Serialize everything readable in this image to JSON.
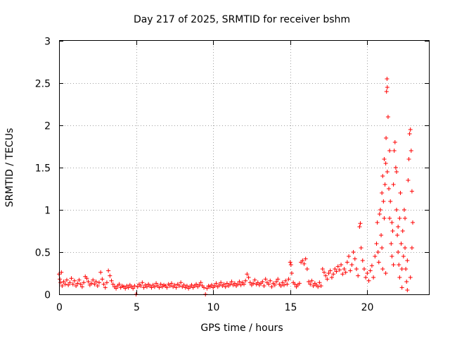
{
  "chart_data": {
    "type": "scatter",
    "title": "Day 217 of 2025, SRMTID for receiver bshm",
    "xlabel": "GPS time / hours",
    "ylabel": "SRMTID / TECUs",
    "xlim": [
      0,
      24
    ],
    "ylim": [
      0,
      3
    ],
    "xticks": [
      0,
      5,
      10,
      15,
      20
    ],
    "xtick_labels": [
      "0",
      "5",
      "10",
      "15",
      "20"
    ],
    "yticks": [
      0,
      0.5,
      1,
      1.5,
      2,
      2.5,
      3
    ],
    "ytick_labels": [
      "0",
      "0.5",
      "1",
      "1.5",
      "2",
      "2.5",
      "3"
    ],
    "grid": true,
    "marker": "+",
    "series": [
      {
        "name": "SRMTID",
        "color": "#ff0000",
        "points": [
          [
            0.0,
            0.24
          ],
          [
            0.05,
            0.18
          ],
          [
            0.1,
            0.14
          ],
          [
            0.15,
            0.26
          ],
          [
            0.2,
            0.1
          ],
          [
            0.3,
            0.15
          ],
          [
            0.4,
            0.12
          ],
          [
            0.5,
            0.17
          ],
          [
            0.6,
            0.11
          ],
          [
            0.7,
            0.14
          ],
          [
            0.8,
            0.19
          ],
          [
            0.9,
            0.12
          ],
          [
            1.0,
            0.16
          ],
          [
            1.1,
            0.1
          ],
          [
            1.2,
            0.13
          ],
          [
            1.3,
            0.17
          ],
          [
            1.4,
            0.12
          ],
          [
            1.5,
            0.09
          ],
          [
            1.6,
            0.14
          ],
          [
            1.7,
            0.21
          ],
          [
            1.8,
            0.19
          ],
          [
            1.9,
            0.15
          ],
          [
            2.0,
            0.11
          ],
          [
            2.1,
            0.13
          ],
          [
            2.2,
            0.17
          ],
          [
            2.3,
            0.12
          ],
          [
            2.4,
            0.15
          ],
          [
            2.5,
            0.1
          ],
          [
            2.6,
            0.14
          ],
          [
            2.7,
            0.26
          ],
          [
            2.8,
            0.18
          ],
          [
            2.9,
            0.12
          ],
          [
            3.0,
            0.08
          ],
          [
            3.1,
            0.14
          ],
          [
            3.2,
            0.28
          ],
          [
            3.3,
            0.22
          ],
          [
            3.4,
            0.16
          ],
          [
            3.5,
            0.12
          ],
          [
            3.6,
            0.09
          ],
          [
            3.7,
            0.07
          ],
          [
            3.8,
            0.1
          ],
          [
            3.9,
            0.12
          ],
          [
            4.0,
            0.08
          ],
          [
            4.1,
            0.1
          ],
          [
            4.2,
            0.09
          ],
          [
            4.3,
            0.07
          ],
          [
            4.4,
            0.1
          ],
          [
            4.5,
            0.08
          ],
          [
            4.6,
            0.11
          ],
          [
            4.7,
            0.09
          ],
          [
            4.8,
            0.07
          ],
          [
            4.9,
            0.1
          ],
          [
            5.0,
            0.0
          ],
          [
            5.1,
            0.09
          ],
          [
            5.2,
            0.12
          ],
          [
            5.3,
            0.1
          ],
          [
            5.4,
            0.14
          ],
          [
            5.5,
            0.08
          ],
          [
            5.6,
            0.11
          ],
          [
            5.7,
            0.09
          ],
          [
            5.8,
            0.12
          ],
          [
            5.9,
            0.1
          ],
          [
            6.0,
            0.08
          ],
          [
            6.1,
            0.11
          ],
          [
            6.2,
            0.09
          ],
          [
            6.3,
            0.13
          ],
          [
            6.4,
            0.1
          ],
          [
            6.5,
            0.08
          ],
          [
            6.6,
            0.12
          ],
          [
            6.7,
            0.09
          ],
          [
            6.8,
            0.11
          ],
          [
            6.9,
            0.1
          ],
          [
            7.0,
            0.08
          ],
          [
            7.1,
            0.12
          ],
          [
            7.2,
            0.1
          ],
          [
            7.3,
            0.13
          ],
          [
            7.4,
            0.09
          ],
          [
            7.5,
            0.11
          ],
          [
            7.6,
            0.08
          ],
          [
            7.7,
            0.12
          ],
          [
            7.8,
            0.1
          ],
          [
            7.9,
            0.14
          ],
          [
            8.0,
            0.09
          ],
          [
            8.1,
            0.11
          ],
          [
            8.2,
            0.08
          ],
          [
            8.3,
            0.1
          ],
          [
            8.4,
            0.07
          ],
          [
            8.5,
            0.09
          ],
          [
            8.6,
            0.11
          ],
          [
            8.7,
            0.08
          ],
          [
            8.8,
            0.1
          ],
          [
            8.9,
            0.12
          ],
          [
            9.0,
            0.09
          ],
          [
            9.1,
            0.11
          ],
          [
            9.2,
            0.14
          ],
          [
            9.3,
            0.1
          ],
          [
            9.4,
            0.08
          ],
          [
            9.5,
            0.0
          ],
          [
            9.6,
            0.07
          ],
          [
            9.7,
            0.1
          ],
          [
            9.8,
            0.09
          ],
          [
            9.9,
            0.11
          ],
          [
            10.0,
            0.08
          ],
          [
            10.1,
            0.1
          ],
          [
            10.2,
            0.13
          ],
          [
            10.3,
            0.09
          ],
          [
            10.4,
            0.11
          ],
          [
            10.5,
            0.14
          ],
          [
            10.6,
            0.1
          ],
          [
            10.7,
            0.12
          ],
          [
            10.8,
            0.09
          ],
          [
            10.9,
            0.13
          ],
          [
            11.0,
            0.1
          ],
          [
            11.1,
            0.12
          ],
          [
            11.2,
            0.15
          ],
          [
            11.3,
            0.11
          ],
          [
            11.4,
            0.13
          ],
          [
            11.5,
            0.1
          ],
          [
            11.6,
            0.12
          ],
          [
            11.7,
            0.15
          ],
          [
            11.8,
            0.11
          ],
          [
            11.9,
            0.14
          ],
          [
            12.0,
            0.12
          ],
          [
            12.1,
            0.16
          ],
          [
            12.2,
            0.24
          ],
          [
            12.3,
            0.2
          ],
          [
            12.4,
            0.14
          ],
          [
            12.5,
            0.11
          ],
          [
            12.6,
            0.13
          ],
          [
            12.7,
            0.17
          ],
          [
            12.8,
            0.12
          ],
          [
            12.9,
            0.14
          ],
          [
            13.0,
            0.11
          ],
          [
            13.1,
            0.13
          ],
          [
            13.2,
            0.15
          ],
          [
            13.3,
            0.1
          ],
          [
            13.4,
            0.18
          ],
          [
            13.5,
            0.14
          ],
          [
            13.6,
            0.12
          ],
          [
            13.7,
            0.16
          ],
          [
            13.8,
            0.09
          ],
          [
            13.9,
            0.13
          ],
          [
            14.0,
            0.11
          ],
          [
            14.1,
            0.15
          ],
          [
            14.2,
            0.18
          ],
          [
            14.3,
            0.12
          ],
          [
            14.4,
            0.1
          ],
          [
            14.5,
            0.14
          ],
          [
            14.6,
            0.11
          ],
          [
            14.7,
            0.16
          ],
          [
            14.8,
            0.12
          ],
          [
            14.9,
            0.18
          ],
          [
            15.0,
            0.38
          ],
          [
            15.05,
            0.35
          ],
          [
            15.1,
            0.25
          ],
          [
            15.2,
            0.14
          ],
          [
            15.3,
            0.12
          ],
          [
            15.4,
            0.09
          ],
          [
            15.5,
            0.11
          ],
          [
            15.6,
            0.13
          ],
          [
            15.7,
            0.38
          ],
          [
            15.8,
            0.4
          ],
          [
            15.9,
            0.36
          ],
          [
            16.0,
            0.42
          ],
          [
            16.1,
            0.3
          ],
          [
            16.2,
            0.15
          ],
          [
            16.3,
            0.12
          ],
          [
            16.4,
            0.16
          ],
          [
            16.5,
            0.1
          ],
          [
            16.6,
            0.13
          ],
          [
            16.7,
            0.11
          ],
          [
            16.8,
            0.09
          ],
          [
            16.9,
            0.14
          ],
          [
            17.0,
            0.1
          ],
          [
            17.1,
            0.3
          ],
          [
            17.2,
            0.26
          ],
          [
            17.3,
            0.22
          ],
          [
            17.4,
            0.18
          ],
          [
            17.5,
            0.25
          ],
          [
            17.6,
            0.28
          ],
          [
            17.7,
            0.2
          ],
          [
            17.8,
            0.24
          ],
          [
            17.9,
            0.3
          ],
          [
            18.0,
            0.27
          ],
          [
            18.1,
            0.33
          ],
          [
            18.2,
            0.29
          ],
          [
            18.3,
            0.35
          ],
          [
            18.4,
            0.24
          ],
          [
            18.5,
            0.3
          ],
          [
            18.6,
            0.26
          ],
          [
            18.7,
            0.38
          ],
          [
            18.8,
            0.45
          ],
          [
            18.9,
            0.28
          ],
          [
            19.0,
            0.35
          ],
          [
            19.1,
            0.5
          ],
          [
            19.2,
            0.42
          ],
          [
            19.3,
            0.3
          ],
          [
            19.4,
            0.22
          ],
          [
            19.5,
            0.8
          ],
          [
            19.55,
            0.84
          ],
          [
            19.6,
            0.55
          ],
          [
            19.7,
            0.4
          ],
          [
            19.8,
            0.3
          ],
          [
            19.9,
            0.2
          ],
          [
            20.0,
            0.25
          ],
          [
            20.1,
            0.16
          ],
          [
            20.2,
            0.28
          ],
          [
            20.3,
            0.34
          ],
          [
            20.4,
            0.2
          ],
          [
            20.5,
            0.45
          ],
          [
            20.6,
            0.6
          ],
          [
            20.65,
            0.85
          ],
          [
            20.7,
            0.5
          ],
          [
            20.75,
            0.38
          ],
          [
            20.8,
            0.95
          ],
          [
            20.85,
            1.0
          ],
          [
            20.9,
            0.7
          ],
          [
            20.95,
            1.2
          ],
          [
            21.0,
            1.4
          ],
          [
            21.05,
            1.1
          ],
          [
            21.1,
            1.6
          ],
          [
            21.15,
            1.3
          ],
          [
            21.2,
            1.55
          ],
          [
            21.22,
            1.85
          ],
          [
            21.25,
            2.4
          ],
          [
            21.28,
            2.55
          ],
          [
            21.3,
            1.45
          ],
          [
            21.35,
            2.1
          ],
          [
            21.4,
            1.25
          ],
          [
            21.45,
            0.9
          ],
          [
            21.5,
            1.1
          ],
          [
            21.55,
            0.6
          ],
          [
            21.6,
            0.45
          ],
          [
            21.65,
            0.75
          ],
          [
            21.7,
            1.3
          ],
          [
            21.75,
            1.7
          ],
          [
            21.8,
            1.8
          ],
          [
            21.85,
            1.5
          ],
          [
            21.9,
            1.0
          ],
          [
            21.95,
            0.7
          ],
          [
            22.0,
            0.5
          ],
          [
            22.05,
            0.35
          ],
          [
            22.1,
            0.9
          ],
          [
            22.15,
            1.2
          ],
          [
            22.2,
            0.6
          ],
          [
            22.25,
            0.3
          ],
          [
            22.3,
            0.75
          ],
          [
            22.35,
            0.45
          ],
          [
            22.4,
            1.0
          ],
          [
            22.45,
            0.55
          ],
          [
            22.5,
            0.3
          ],
          [
            22.55,
            0.15
          ],
          [
            22.6,
            0.4
          ],
          [
            22.65,
            1.35
          ],
          [
            22.7,
            1.6
          ],
          [
            22.75,
            1.9
          ],
          [
            22.8,
            1.95
          ],
          [
            22.85,
            1.7
          ],
          [
            22.9,
            0.55
          ],
          [
            22.95,
            0.85
          ],
          [
            21.3,
            2.45
          ],
          [
            21.45,
            1.7
          ],
          [
            21.6,
            0.85
          ],
          [
            21.9,
            1.45
          ],
          [
            22.1,
            0.2
          ],
          [
            22.25,
            0.08
          ],
          [
            22.6,
            0.05
          ],
          [
            21.0,
            0.3
          ],
          [
            20.95,
            0.55
          ],
          [
            21.1,
            0.9
          ],
          [
            21.2,
            0.25
          ],
          [
            21.7,
            0.35
          ],
          [
            22.0,
            0.8
          ],
          [
            22.45,
            0.9
          ],
          [
            22.8,
            0.2
          ],
          [
            22.9,
            1.22
          ]
        ]
      }
    ]
  }
}
